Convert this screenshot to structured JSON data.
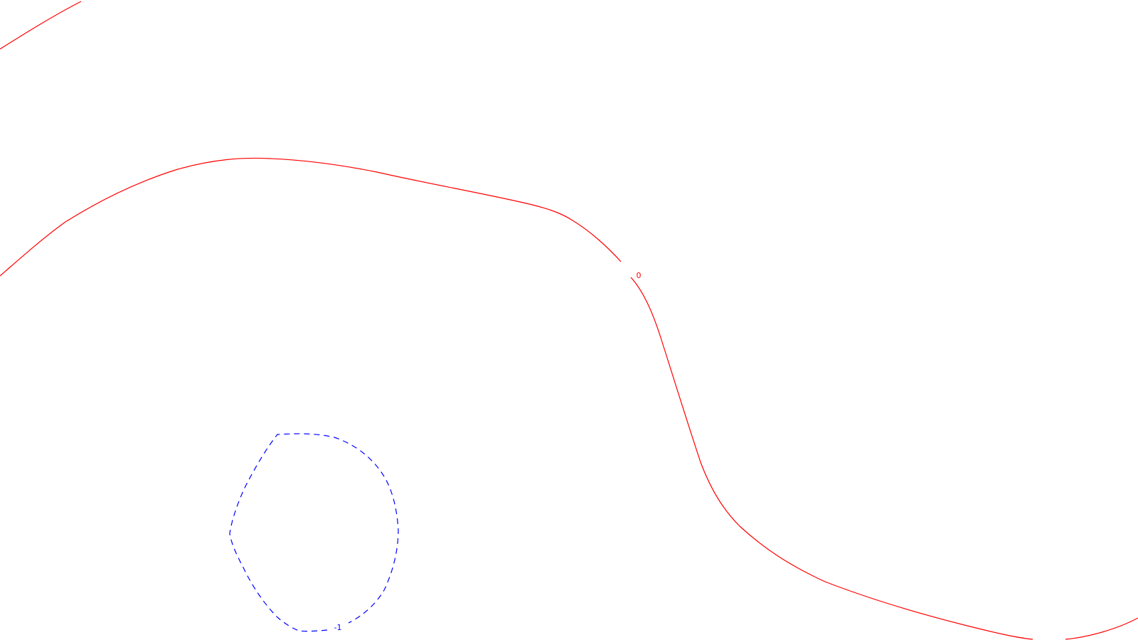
{
  "map": {
    "contours": [
      {
        "id": "contour-0",
        "level_label": "0",
        "color": "#ff0000",
        "style": "solid"
      },
      {
        "id": "contour-minus-1",
        "level_label": "-1",
        "color": "#0000ff",
        "style": "dashed"
      }
    ]
  }
}
